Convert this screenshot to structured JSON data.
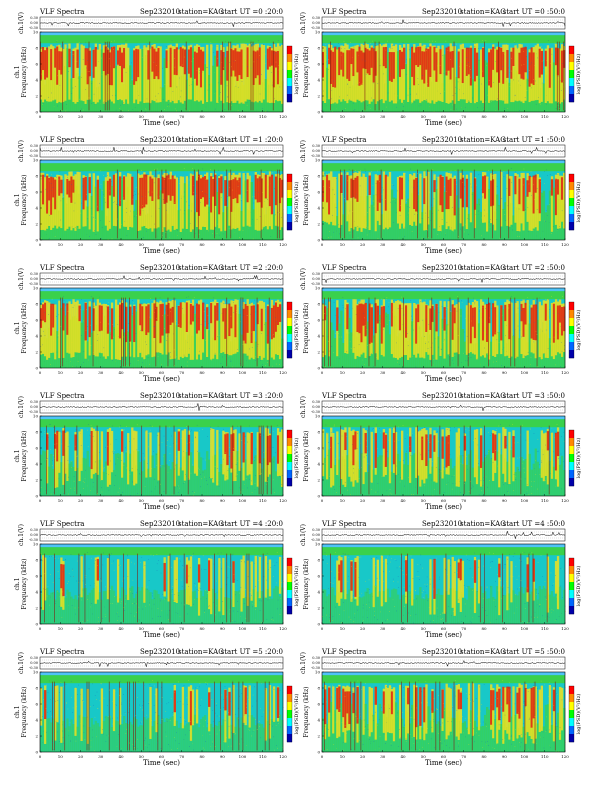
{
  "header": {
    "title": "VLF Spectra",
    "date": "Sep232010",
    "station": "station=KAG",
    "start_prefix": "start  UT ="
  },
  "axes": {
    "wave_ylabel": "ch.1(V)",
    "wave_ticks": [
      "0.30",
      "0.00",
      "-0.30"
    ],
    "spec_ylabel": "Frequency  (kHz)",
    "spec_ylabel_ch": "ch.1",
    "xlabel": "Time  (sec)",
    "colorbar_label": "log(PSD)(V²/Hz)"
  },
  "chart_data": [
    {
      "type": "heatmap",
      "panel": "col-left-row-1",
      "start_ut": "0 :20:0",
      "xlim": [
        0,
        120
      ],
      "ylim": [
        0,
        10
      ],
      "x_ticks": [
        0,
        10,
        20,
        30,
        40,
        50,
        60,
        70,
        80,
        90,
        100,
        110,
        120
      ],
      "y_ticks": [
        0,
        2,
        4,
        6,
        8,
        10
      ],
      "activity": 0.85,
      "noise_band_khz": 10
    },
    {
      "type": "heatmap",
      "panel": "col-right-row-1",
      "start_ut": "0 :50:0",
      "xlim": [
        0,
        120
      ],
      "ylim": [
        0,
        10
      ],
      "x_ticks": [
        0,
        10,
        20,
        30,
        40,
        50,
        60,
        70,
        80,
        90,
        100,
        110,
        120
      ],
      "y_ticks": [
        0,
        2,
        4,
        6,
        8,
        10
      ],
      "activity": 0.85,
      "noise_band_khz": 10
    },
    {
      "type": "heatmap",
      "panel": "col-left-row-2",
      "start_ut": "1 :20:0",
      "xlim": [
        0,
        120
      ],
      "ylim": [
        0,
        10
      ],
      "x_ticks": [
        0,
        10,
        20,
        30,
        40,
        50,
        60,
        70,
        80,
        90,
        100,
        110,
        120
      ],
      "y_ticks": [
        0,
        2,
        4,
        6,
        8,
        10
      ],
      "activity": 0.8,
      "noise_band_khz": 10
    },
    {
      "type": "heatmap",
      "panel": "col-right-row-2",
      "start_ut": "1 :50:0",
      "xlim": [
        0,
        120
      ],
      "ylim": [
        0,
        10
      ],
      "x_ticks": [
        0,
        10,
        20,
        30,
        40,
        50,
        60,
        70,
        80,
        90,
        100,
        110,
        120
      ],
      "y_ticks": [
        0,
        2,
        4,
        6,
        8,
        10
      ],
      "activity": 0.65,
      "noise_band_khz": 10
    },
    {
      "type": "heatmap",
      "panel": "col-left-row-3",
      "start_ut": "2 :20:0",
      "xlim": [
        0,
        120
      ],
      "ylim": [
        0,
        10
      ],
      "x_ticks": [
        0,
        10,
        20,
        30,
        40,
        50,
        60,
        70,
        80,
        90,
        100,
        110,
        120
      ],
      "y_ticks": [
        0,
        2,
        4,
        6,
        8,
        10
      ],
      "activity": 0.75,
      "noise_band_khz": 10
    },
    {
      "type": "heatmap",
      "panel": "col-right-row-3",
      "start_ut": "2 :50:0",
      "xlim": [
        0,
        120
      ],
      "ylim": [
        0,
        10
      ],
      "x_ticks": [
        0,
        10,
        20,
        30,
        40,
        50,
        60,
        70,
        80,
        90,
        100,
        110,
        120
      ],
      "y_ticks": [
        0,
        2,
        4,
        6,
        8,
        10
      ],
      "activity": 0.75,
      "noise_band_khz": 10
    },
    {
      "type": "heatmap",
      "panel": "col-left-row-4",
      "start_ut": "3 :20:0",
      "xlim": [
        0,
        120
      ],
      "ylim": [
        0,
        10
      ],
      "x_ticks": [
        0,
        10,
        20,
        30,
        40,
        50,
        60,
        70,
        80,
        90,
        100,
        110,
        120
      ],
      "y_ticks": [
        0,
        2,
        4,
        6,
        8,
        10
      ],
      "activity": 0.45,
      "noise_band_khz": 10
    },
    {
      "type": "heatmap",
      "panel": "col-right-row-4",
      "start_ut": "3 :50:0",
      "xlim": [
        0,
        120
      ],
      "ylim": [
        0,
        10
      ],
      "x_ticks": [
        0,
        10,
        20,
        30,
        40,
        50,
        60,
        70,
        80,
        90,
        100,
        110,
        120
      ],
      "y_ticks": [
        0,
        2,
        4,
        6,
        8,
        10
      ],
      "activity": 0.5,
      "noise_band_khz": 10
    },
    {
      "type": "heatmap",
      "panel": "col-left-row-5",
      "start_ut": "4 :20:0",
      "xlim": [
        0,
        120
      ],
      "ylim": [
        0,
        10
      ],
      "x_ticks": [
        0,
        10,
        20,
        30,
        40,
        50,
        60,
        70,
        80,
        90,
        100,
        110,
        120
      ],
      "y_ticks": [
        0,
        2,
        4,
        6,
        8,
        10
      ],
      "activity": 0.3,
      "noise_band_khz": 10
    },
    {
      "type": "heatmap",
      "panel": "col-right-row-5",
      "start_ut": "4 :50:0",
      "xlim": [
        0,
        120
      ],
      "ylim": [
        0,
        10
      ],
      "x_ticks": [
        0,
        10,
        20,
        30,
        40,
        50,
        60,
        70,
        80,
        90,
        100,
        110,
        120
      ],
      "y_ticks": [
        0,
        2,
        4,
        6,
        8,
        10
      ],
      "activity": 0.3,
      "noise_band_khz": 10
    },
    {
      "type": "heatmap",
      "panel": "col-left-row-6",
      "start_ut": "5 :20:0",
      "xlim": [
        0,
        120
      ],
      "ylim": [
        0,
        10
      ],
      "x_ticks": [
        0,
        10,
        20,
        30,
        40,
        50,
        60,
        70,
        80,
        90,
        100,
        110,
        120
      ],
      "y_ticks": [
        0,
        2,
        4,
        6,
        8,
        10
      ],
      "activity": 0.28,
      "noise_band_khz": 10
    },
    {
      "type": "heatmap",
      "panel": "col-right-row-6",
      "start_ut": "5 :50:0",
      "xlim": [
        0,
        120
      ],
      "ylim": [
        0,
        10
      ],
      "x_ticks": [
        0,
        10,
        20,
        30,
        40,
        50,
        60,
        70,
        80,
        90,
        100,
        110,
        120
      ],
      "y_ticks": [
        0,
        2,
        4,
        6,
        8,
        10
      ],
      "activity": 0.55,
      "noise_band_khz": 10
    }
  ],
  "colors": {
    "background_band": "#4fc3f7",
    "low": "#18c8c8",
    "mid": "#3ed23e",
    "high": "#f0e020",
    "peak": "#e02010",
    "dark": "#801a10",
    "colorbar": [
      "#ff0000",
      "#ff8800",
      "#ffff00",
      "#00ff00",
      "#00ffff",
      "#0066ff",
      "#0000aa"
    ]
  }
}
